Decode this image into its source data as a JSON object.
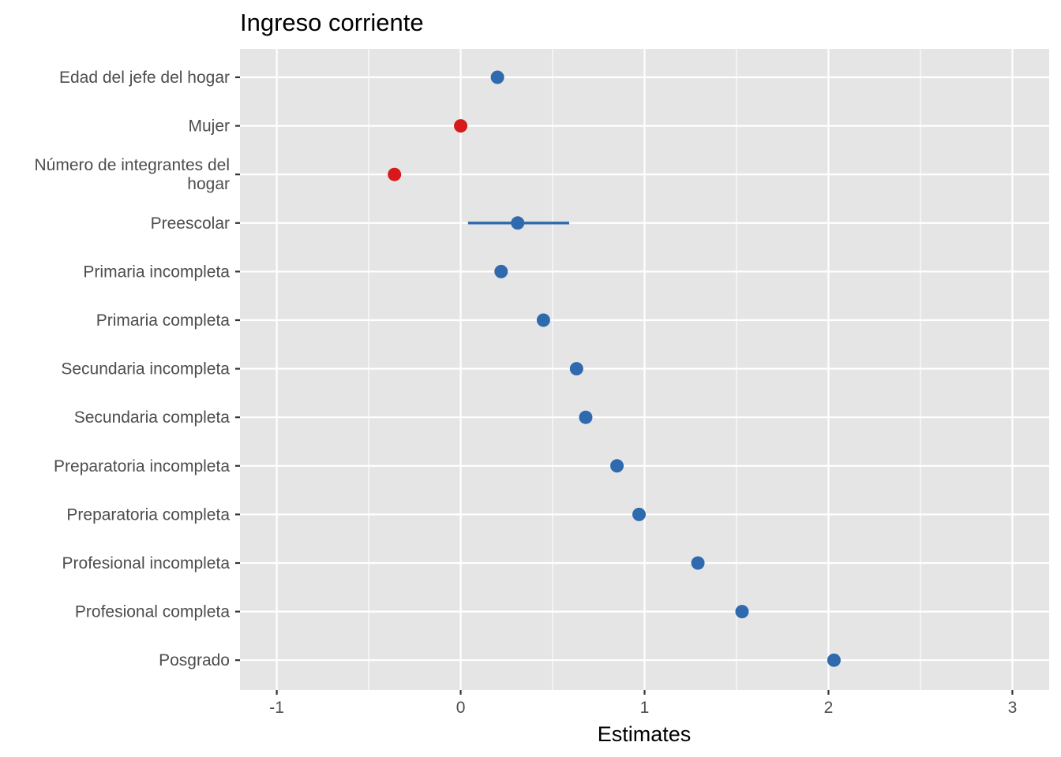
{
  "chart_data": {
    "type": "scatter",
    "title": "Ingreso corriente",
    "xlabel": "Estimates",
    "ylabel": "",
    "xlim": [
      -1.2,
      3.2
    ],
    "x_ticks": [
      -1,
      0,
      1,
      2,
      3
    ],
    "x_tick_labels": [
      "-1",
      "0",
      "1",
      "2",
      "3"
    ],
    "x_minor_ticks": [
      -0.5,
      0.5,
      1.5,
      2.5
    ],
    "grid": true,
    "legend": "none",
    "colors": {
      "positive": "#2e6aad",
      "negative": "#d7191c",
      "panel": "#e5e5e5",
      "grid": "#ffffff"
    },
    "terms": [
      {
        "label": [
          "Edad del jefe del hogar"
        ],
        "estimate": 0.2,
        "conf_low": 0.19,
        "conf_high": 0.21,
        "sign": "positive"
      },
      {
        "label": [
          "Mujer"
        ],
        "estimate": 0.0,
        "conf_low": -0.01,
        "conf_high": 0.01,
        "sign": "negative"
      },
      {
        "label": [
          "Número de integrantes del",
          "hogar"
        ],
        "estimate": -0.36,
        "conf_low": -0.37,
        "conf_high": -0.35,
        "sign": "negative"
      },
      {
        "label": [
          "Preescolar"
        ],
        "estimate": 0.31,
        "conf_low": 0.04,
        "conf_high": 0.59,
        "sign": "positive"
      },
      {
        "label": [
          "Primaria incompleta"
        ],
        "estimate": 0.22,
        "conf_low": 0.2,
        "conf_high": 0.24,
        "sign": "positive"
      },
      {
        "label": [
          "Primaria completa"
        ],
        "estimate": 0.45,
        "conf_low": 0.44,
        "conf_high": 0.46,
        "sign": "positive"
      },
      {
        "label": [
          "Secundaria incompleta"
        ],
        "estimate": 0.63,
        "conf_low": 0.62,
        "conf_high": 0.64,
        "sign": "positive"
      },
      {
        "label": [
          "Secundaria completa"
        ],
        "estimate": 0.68,
        "conf_low": 0.67,
        "conf_high": 0.69,
        "sign": "positive"
      },
      {
        "label": [
          "Preparatoria incompleta"
        ],
        "estimate": 0.85,
        "conf_low": 0.84,
        "conf_high": 0.86,
        "sign": "positive"
      },
      {
        "label": [
          "Preparatoria completa"
        ],
        "estimate": 0.97,
        "conf_low": 0.96,
        "conf_high": 0.98,
        "sign": "positive"
      },
      {
        "label": [
          "Profesional incompleta"
        ],
        "estimate": 1.29,
        "conf_low": 1.28,
        "conf_high": 1.3,
        "sign": "positive"
      },
      {
        "label": [
          "Profesional completa"
        ],
        "estimate": 1.53,
        "conf_low": 1.52,
        "conf_high": 1.54,
        "sign": "positive"
      },
      {
        "label": [
          "Posgrado"
        ],
        "estimate": 2.03,
        "conf_low": 2.0,
        "conf_high": 2.05,
        "sign": "positive"
      }
    ]
  }
}
